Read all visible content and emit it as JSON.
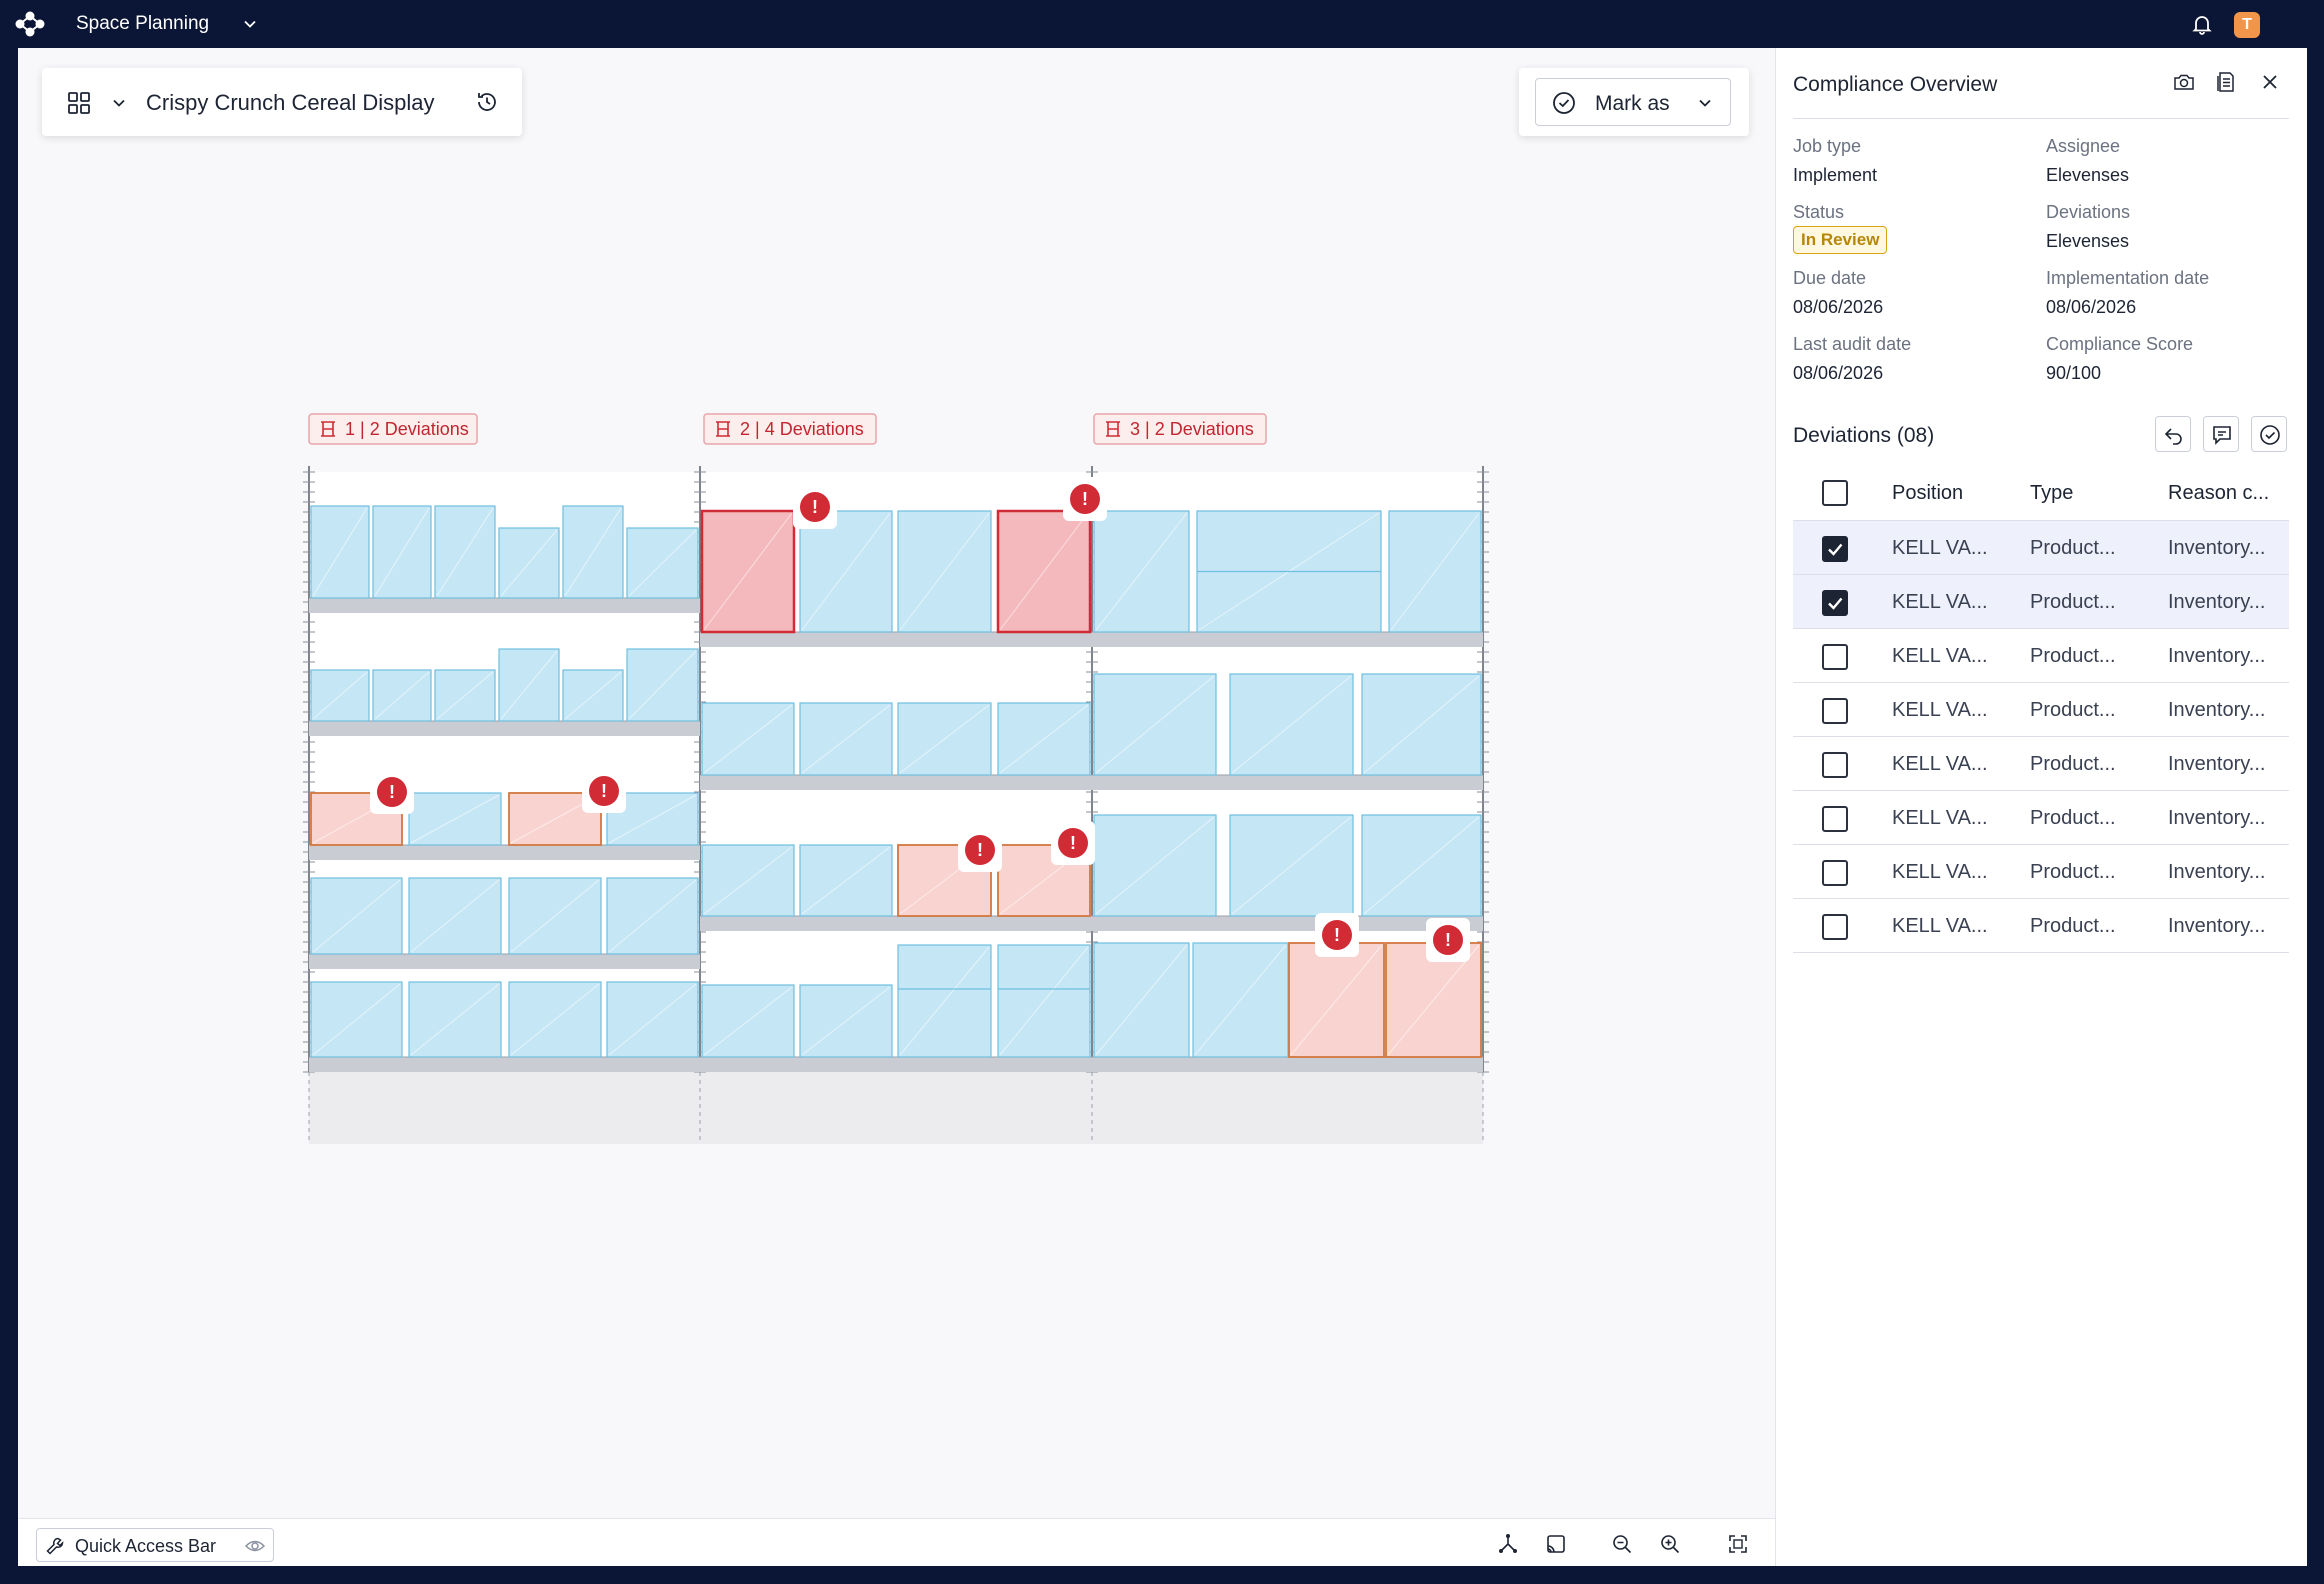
{
  "app": {
    "title": "Space Planning",
    "avatar_initial": "T"
  },
  "document": {
    "title": "Crispy Crunch Cereal Display"
  },
  "actions": {
    "mark_as": "Mark as"
  },
  "bays": [
    {
      "label": "1 | 2 Deviations"
    },
    {
      "label": "2 | 4 Deviations"
    },
    {
      "label": "3 | 2 Deviations"
    }
  ],
  "quick_access": {
    "label": "Quick Access Bar"
  },
  "panel": {
    "title": "Compliance Overview",
    "details": {
      "job_type_label": "Job type",
      "job_type": "Implement",
      "assignee_label": "Assignee",
      "assignee": "Elevenses",
      "status_label": "Status",
      "status": "In Review",
      "deviations_label": "Deviations",
      "deviations": "Elevenses",
      "due_date_label": "Due date",
      "due_date": "08/06/2026",
      "implementation_date_label": "Implementation date",
      "implementation_date": "08/06/2026",
      "last_audit_label": "Last audit date",
      "last_audit": "08/06/2026",
      "score_label": "Compliance Score",
      "score": "90/100"
    },
    "deviations_title": "Deviations (08)",
    "columns": [
      "Position",
      "Type",
      "Reason c..."
    ],
    "rows": [
      {
        "position": "KELL VA...",
        "type": "Product...",
        "reason": "Inventory...",
        "checked": true
      },
      {
        "position": "KELL VA...",
        "type": "Product...",
        "reason": "Inventory...",
        "checked": true
      },
      {
        "position": "KELL VA...",
        "type": "Product...",
        "reason": "Inventory...",
        "checked": false
      },
      {
        "position": "KELL VA...",
        "type": "Product...",
        "reason": "Inventory...",
        "checked": false
      },
      {
        "position": "KELL VA...",
        "type": "Product...",
        "reason": "Inventory...",
        "checked": false
      },
      {
        "position": "KELL VA...",
        "type": "Product...",
        "reason": "Inventory...",
        "checked": false
      },
      {
        "position": "KELL VA...",
        "type": "Product...",
        "reason": "Inventory...",
        "checked": false
      },
      {
        "position": "KELL VA...",
        "type": "Product...",
        "reason": "Inventory...",
        "checked": false
      }
    ]
  },
  "colors": {
    "nav": "#0b1535",
    "product": "#c5e6f5",
    "deviation_red": "#d12b36",
    "deviation_fill": "#f4b9bd",
    "warning_fill": "#f9d3d0",
    "warning_border": "#d2773f",
    "status_amber": "#d9a514"
  }
}
